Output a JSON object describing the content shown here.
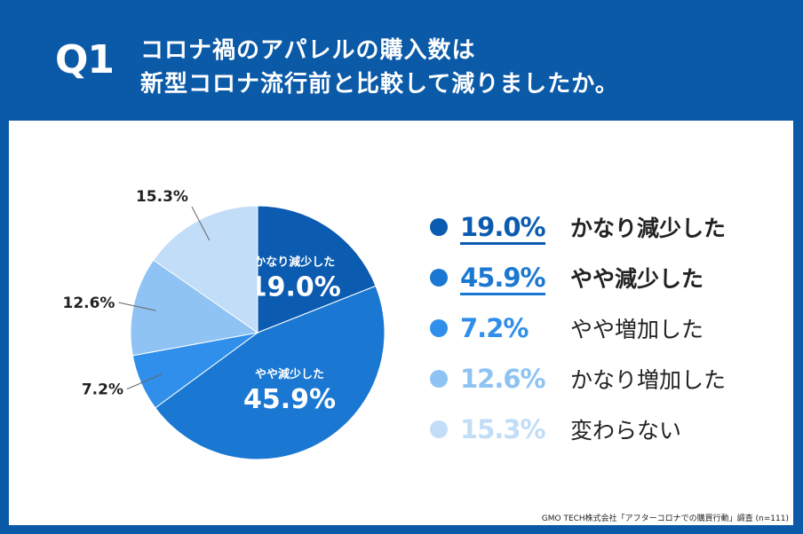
{
  "header": {
    "q": "Q1",
    "title_line1": "コロナ禍のアパレルの購入数は",
    "title_line2": "新型コロナ流行前と比較して減りましたか。"
  },
  "source": "GMO TECH株式会社「アフターコロナでの購買行動」調査 (n=111)",
  "chart_data": {
    "type": "pie",
    "start": "top",
    "direction": "clockwise",
    "slices": [
      {
        "label": "かなり減少した",
        "value": 19.0,
        "text": "19.0%",
        "color": "#0b5bb0",
        "bold": true
      },
      {
        "label": "やや減少した",
        "value": 45.9,
        "text": "45.9%",
        "color": "#1b78d2",
        "bold": true
      },
      {
        "label": "やや増加した",
        "value": 7.2,
        "text": "7.2%",
        "color": "#2f8fea",
        "bold": false
      },
      {
        "label": "かなり増加した",
        "value": 12.6,
        "text": "12.6%",
        "color": "#8ec3f4",
        "bold": false
      },
      {
        "label": "変わらない",
        "value": 15.3,
        "text": "15.3%",
        "color": "#c2ddf7",
        "bold": false
      }
    ]
  }
}
